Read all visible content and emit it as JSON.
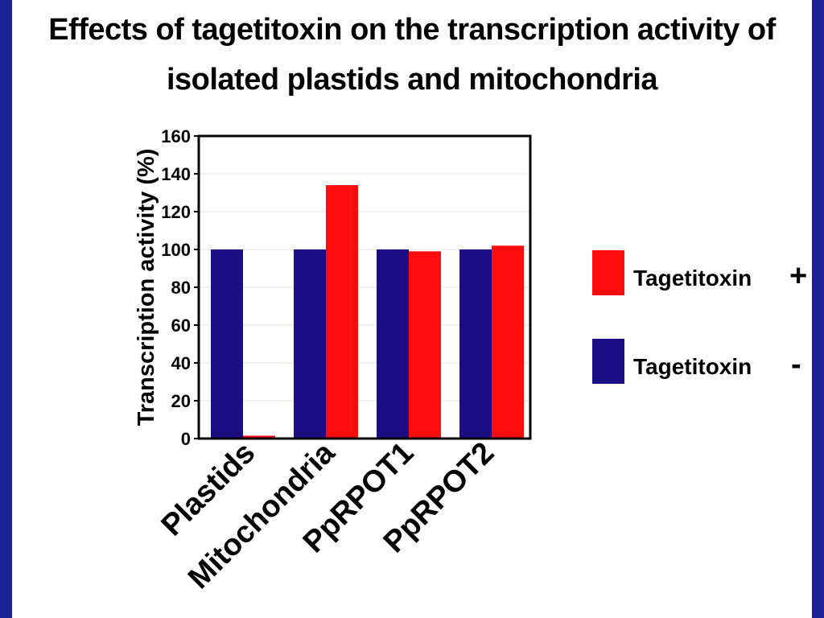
{
  "colors": {
    "background": "#1a1f8c",
    "slide": "#ffffff",
    "tagetitoxin_plus": "#ff0d0d",
    "tagetitoxin_minus": "#1c0d84"
  },
  "title": {
    "line1": "Effects of tagetitoxin on the transcription activity of",
    "line2": "isolated plastids and mitochondria"
  },
  "legend": {
    "plus_label": "Tagetitoxin",
    "plus_sign": "+",
    "minus_label": "Tagetitoxin",
    "minus_sign": "-"
  },
  "chart_data": {
    "type": "bar",
    "categories": [
      "Plastids",
      "Mitochondria",
      "PpRPOT1",
      "PpRPOT2"
    ],
    "series": [
      {
        "name": "Tagetitoxin -",
        "color": "#1c0d84",
        "values": [
          100,
          100,
          100,
          100
        ]
      },
      {
        "name": "Tagetitoxin +",
        "color": "#ff0d0d",
        "values": [
          1.5,
          134,
          99,
          102
        ]
      }
    ],
    "ylabel": "Transcription activity (%)",
    "xlabel": "",
    "ylim": [
      0,
      160
    ],
    "yticks": [
      "0",
      "20",
      "40",
      "60",
      "80",
      "100",
      "120",
      "140",
      "160"
    ],
    "grid": true,
    "legend_position": "right"
  }
}
